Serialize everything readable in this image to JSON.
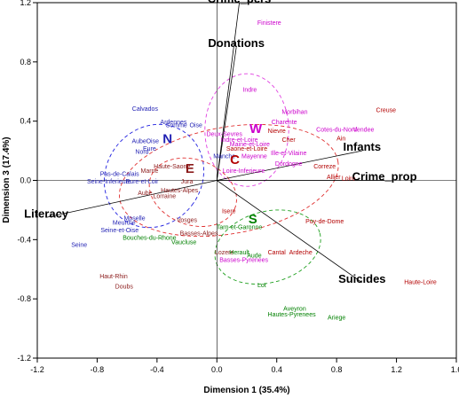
{
  "chart_data": {
    "type": "scatter",
    "title": "",
    "xlabel": "Dimension 1 (35.4%)",
    "ylabel": "Dimension 3 (17.4%)",
    "xlim": [
      -1.2,
      1.6
    ],
    "ylim": [
      -1.2,
      1.2
    ],
    "xticks": [
      -1.2,
      -0.8,
      -0.4,
      0.0,
      0.4,
      0.8,
      1.2,
      1.6
    ],
    "yticks": [
      -1.2,
      -0.8,
      -0.4,
      0.0,
      0.4,
      0.8,
      1.2
    ],
    "xtick_labels": [
      "-1.2",
      "-0.8",
      "-0.4",
      "0.0",
      "0.4",
      "0.8",
      "1.2",
      "1.6"
    ],
    "ytick_labels": [
      "-1.2",
      "-0.8",
      "-0.4",
      "0.0",
      "0.4",
      "0.8",
      "1.2"
    ],
    "colors": {
      "blue": "#1f1fb3",
      "magenta": "#cc00cc",
      "red": "#b30000",
      "green": "#008000",
      "brown": "#8b1a1a",
      "ellipse_red": "#e03030",
      "ellipse_blue": "#2020e0",
      "ellipse_magenta": "#e040e0",
      "ellipse_green": "#20a020"
    },
    "variables": [
      {
        "name": "Crime_pers",
        "x": 0.15,
        "y": 1.2,
        "size": 13
      },
      {
        "name": "Donations",
        "x": 0.13,
        "y": 0.9,
        "size": 13
      },
      {
        "name": "Infants",
        "x": 0.97,
        "y": 0.2,
        "size": 13
      },
      {
        "name": "Crime_prop",
        "x": 1.12,
        "y": 0.0,
        "size": 13
      },
      {
        "name": "Literacy",
        "x": -1.14,
        "y": -0.25,
        "size": 13
      },
      {
        "name": "Suicides",
        "x": 0.97,
        "y": -0.69,
        "size": 13
      }
    ],
    "group_markers": [
      {
        "label": "N",
        "x": -0.33,
        "y": 0.25,
        "color": "blue"
      },
      {
        "label": "W",
        "x": 0.26,
        "y": 0.32,
        "color": "magenta"
      },
      {
        "label": "C",
        "x": 0.12,
        "y": 0.11,
        "color": "red"
      },
      {
        "label": "E",
        "x": -0.18,
        "y": 0.05,
        "color": "brown"
      },
      {
        "label": "S",
        "x": 0.24,
        "y": -0.29,
        "color": "green"
      }
    ],
    "ellipses": [
      {
        "group": "C",
        "cx": 0.08,
        "cy": 0.0,
        "rx": 0.74,
        "ry": 0.36,
        "rotate": -10,
        "color": "ellipse_red"
      },
      {
        "group": "N",
        "cx": -0.42,
        "cy": 0.03,
        "rx": 0.32,
        "ry": 0.36,
        "rotate": 35,
        "color": "ellipse_blue"
      },
      {
        "group": "W",
        "cx": 0.2,
        "cy": 0.34,
        "rx": 0.28,
        "ry": 0.38,
        "rotate": 0,
        "color": "ellipse_magenta"
      },
      {
        "group": "S",
        "cx": 0.34,
        "cy": -0.45,
        "rx": 0.36,
        "ry": 0.24,
        "rotate": -15,
        "color": "ellipse_green"
      },
      {
        "group": "E",
        "cx": -0.16,
        "cy": -0.08,
        "rx": 0.3,
        "ry": 0.22,
        "rotate": 20,
        "color": "ellipse_red"
      }
    ],
    "departments": [
      {
        "name": "Finistere",
        "x": 0.35,
        "y": 1.05,
        "color": "magenta"
      },
      {
        "name": "Indre",
        "x": 0.22,
        "y": 0.6,
        "color": "magenta"
      },
      {
        "name": "Morbihan",
        "x": 0.52,
        "y": 0.45,
        "color": "magenta"
      },
      {
        "name": "Charente",
        "x": 0.45,
        "y": 0.38,
        "color": "magenta"
      },
      {
        "name": "Cotes-du-Nord",
        "x": 0.8,
        "y": 0.33,
        "color": "magenta"
      },
      {
        "name": "Vendee",
        "x": 0.98,
        "y": 0.33,
        "color": "magenta"
      },
      {
        "name": "Creuse",
        "x": 1.13,
        "y": 0.46,
        "color": "red"
      },
      {
        "name": "Ain",
        "x": 0.83,
        "y": 0.27,
        "color": "red"
      },
      {
        "name": "Calvados",
        "x": -0.48,
        "y": 0.47,
        "color": "blue"
      },
      {
        "name": "Ardennes",
        "x": -0.29,
        "y": 0.38,
        "color": "blue"
      },
      {
        "name": "Somme",
        "x": -0.27,
        "y": 0.36,
        "color": "blue"
      },
      {
        "name": "Oise",
        "x": -0.14,
        "y": 0.36,
        "color": "blue"
      },
      {
        "name": "Aube",
        "x": -0.52,
        "y": 0.25,
        "color": "blue"
      },
      {
        "name": "Oise",
        "x": -0.43,
        "y": 0.25,
        "color": "blue"
      },
      {
        "name": "Eure",
        "x": -0.45,
        "y": 0.2,
        "color": "blue"
      },
      {
        "name": "Nord",
        "x": -0.5,
        "y": 0.18,
        "color": "blue"
      },
      {
        "name": "Deux-Sevres",
        "x": 0.05,
        "y": 0.3,
        "color": "magenta"
      },
      {
        "name": "Indre-et-Loire",
        "x": 0.15,
        "y": 0.26,
        "color": "magenta"
      },
      {
        "name": "Cher",
        "x": 0.48,
        "y": 0.26,
        "color": "red"
      },
      {
        "name": "Nievre",
        "x": 0.4,
        "y": 0.32,
        "color": "red"
      },
      {
        "name": "Maine-et-Loire",
        "x": 0.22,
        "y": 0.23,
        "color": "magenta"
      },
      {
        "name": "Saone-et-Loire",
        "x": 0.2,
        "y": 0.2,
        "color": "red"
      },
      {
        "name": "Ille-et-Vilaine",
        "x": 0.48,
        "y": 0.17,
        "color": "magenta"
      },
      {
        "name": "Manche",
        "x": 0.05,
        "y": 0.15,
        "color": "blue"
      },
      {
        "name": "Mayenne",
        "x": 0.25,
        "y": 0.15,
        "color": "magenta"
      },
      {
        "name": "Dordogne",
        "x": 0.48,
        "y": 0.1,
        "color": "magenta"
      },
      {
        "name": "Loire-Inferieure",
        "x": 0.18,
        "y": 0.05,
        "color": "magenta"
      },
      {
        "name": "Correze",
        "x": 0.72,
        "y": 0.08,
        "color": "red"
      },
      {
        "name": "Allier",
        "x": 0.78,
        "y": 0.01,
        "color": "red"
      },
      {
        "name": "Loire",
        "x": 0.88,
        "y": 0.0,
        "color": "red"
      },
      {
        "name": "Haute-Saone",
        "x": -0.3,
        "y": 0.08,
        "color": "brown"
      },
      {
        "name": "Marne",
        "x": -0.45,
        "y": 0.05,
        "color": "brown"
      },
      {
        "name": "Pas-de-Calais",
        "x": -0.65,
        "y": 0.03,
        "color": "blue"
      },
      {
        "name": "Seine-Inferieure",
        "x": -0.72,
        "y": -0.02,
        "color": "blue"
      },
      {
        "name": "Eure-et-Loir",
        "x": -0.5,
        "y": -0.02,
        "color": "blue"
      },
      {
        "name": "Jura",
        "x": -0.2,
        "y": -0.02,
        "color": "brown"
      },
      {
        "name": "Hautes-Alpes",
        "x": -0.25,
        "y": -0.08,
        "color": "brown"
      },
      {
        "name": "Aube",
        "x": -0.48,
        "y": -0.1,
        "color": "brown"
      },
      {
        "name": "Lorraine",
        "x": -0.35,
        "y": -0.12,
        "color": "brown"
      },
      {
        "name": "Isere",
        "x": 0.08,
        "y": -0.22,
        "color": "red"
      },
      {
        "name": "Vosges",
        "x": -0.2,
        "y": -0.28,
        "color": "brown"
      },
      {
        "name": "Moselle",
        "x": -0.55,
        "y": -0.27,
        "color": "blue"
      },
      {
        "name": "Meurthe",
        "x": -0.62,
        "y": -0.3,
        "color": "blue"
      },
      {
        "name": "Seine-et-Oise",
        "x": -0.65,
        "y": -0.35,
        "color": "blue"
      },
      {
        "name": "Seine",
        "x": -0.92,
        "y": -0.45,
        "color": "blue"
      },
      {
        "name": "Bouches-du-Rhone",
        "x": -0.45,
        "y": -0.4,
        "color": "green"
      },
      {
        "name": "Basses-Alpes",
        "x": -0.12,
        "y": -0.37,
        "color": "brown"
      },
      {
        "name": "Vaucluse",
        "x": -0.22,
        "y": -0.43,
        "color": "green"
      },
      {
        "name": "Tarn-et-Garonne",
        "x": 0.15,
        "y": -0.33,
        "color": "green"
      },
      {
        "name": "Puy-de-Dome",
        "x": 0.72,
        "y": -0.29,
        "color": "red"
      },
      {
        "name": "Cantal",
        "x": 0.4,
        "y": -0.5,
        "color": "red"
      },
      {
        "name": "Ardeche",
        "x": 0.56,
        "y": -0.5,
        "color": "red"
      },
      {
        "name": "Aude",
        "x": 0.25,
        "y": -0.52,
        "color": "green"
      },
      {
        "name": "Lozere",
        "x": 0.05,
        "y": -0.5,
        "color": "brown"
      },
      {
        "name": "Herault",
        "x": 0.15,
        "y": -0.5,
        "color": "green"
      },
      {
        "name": "Basses-Pyrenees",
        "x": 0.18,
        "y": -0.55,
        "color": "magenta"
      },
      {
        "name": "Haut-Rhin",
        "x": -0.69,
        "y": -0.66,
        "color": "brown"
      },
      {
        "name": "Doubs",
        "x": -0.62,
        "y": -0.73,
        "color": "brown"
      },
      {
        "name": "Lot",
        "x": 0.3,
        "y": -0.72,
        "color": "green"
      },
      {
        "name": "Haute-Loire",
        "x": 1.36,
        "y": -0.7,
        "color": "red"
      },
      {
        "name": "Aveyron",
        "x": 0.52,
        "y": -0.88,
        "color": "green"
      },
      {
        "name": "Hautes-Pyrenees",
        "x": 0.5,
        "y": -0.92,
        "color": "green"
      },
      {
        "name": "Ariege",
        "x": 0.8,
        "y": -0.94,
        "color": "green"
      }
    ]
  }
}
